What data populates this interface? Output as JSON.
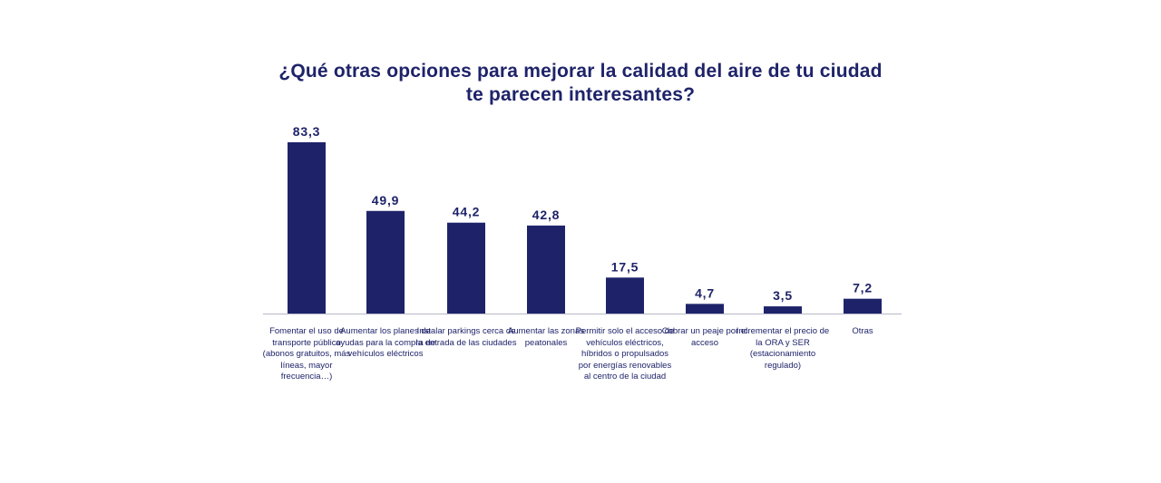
{
  "colors": {
    "bar": "#1e2369",
    "text": "#1e2369",
    "axis": "#b8b8c8"
  },
  "chart_data": {
    "type": "bar",
    "title": "¿Qué otras opciones para mejorar la calidad del aire de tu ciudad te parecen interesantes?",
    "title_lines": [
      "¿Qué otras opciones para mejorar la calidad del aire de tu ciudad",
      "te parecen interesantes?"
    ],
    "categories": [
      "Fomentar el uso de transporte público (abonos gratuitos, más líneas, mayor frecuencia…)",
      "Aumentar los planes de ayudas para la compra de vehículos eléctricos",
      "Instalar parkings cerca de la entrada de las ciudades",
      "Aumentar las zonas peatonales",
      "Permitir solo el acceso de vehículos eléctricos, híbridos o propulsados por energías renovables al centro de la ciudad",
      "Cobrar un peaje por el acceso",
      "Incrementar el precio de la ORA y SER (estacionamiento regulado)",
      "Otras"
    ],
    "values": [
      83.3,
      49.9,
      44.2,
      42.8,
      17.5,
      4.7,
      3.5,
      7.2
    ],
    "value_labels": [
      "83,3",
      "49,9",
      "44,2",
      "42,8",
      "17,5",
      "4,7",
      "3,5",
      "7,2"
    ],
    "xlabel": "",
    "ylabel": "",
    "ylim": [
      0,
      83.3
    ],
    "grid": false,
    "legend": "none"
  }
}
